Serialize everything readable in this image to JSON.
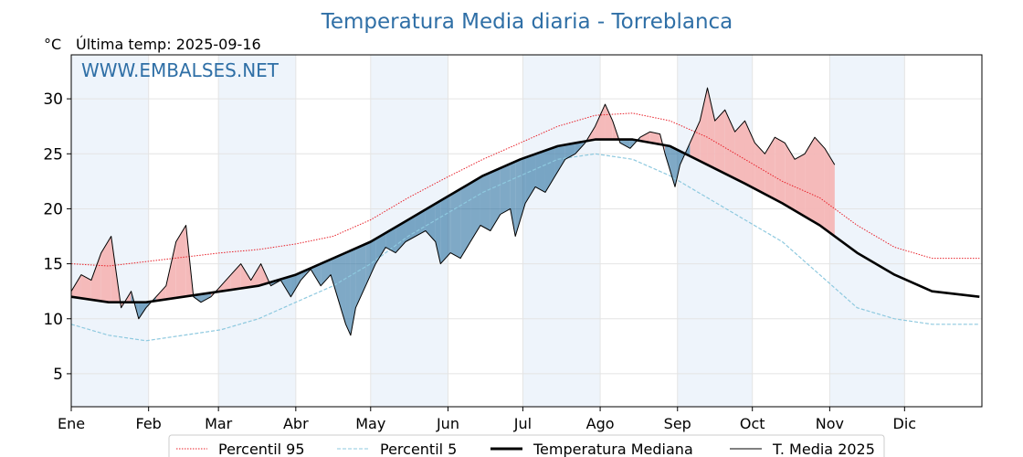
{
  "chart_data": {
    "type": "line",
    "title": "Temperatura Media diaria - Torreblanca",
    "unit_label": "°C",
    "subtitle": "Última temp: 2025-09-16",
    "watermark": "WWW.EMBALSES.NET",
    "months": [
      "Ene",
      "Feb",
      "Mar",
      "Abr",
      "May",
      "Jun",
      "Jul",
      "Ago",
      "Sep",
      "Oct",
      "Nov",
      "Dic"
    ],
    "yticks": [
      5,
      10,
      15,
      20,
      25,
      30
    ],
    "ylim": [
      2,
      34
    ],
    "grid": true,
    "legend_position": "bottom-center",
    "colors": {
      "p95": "#e8212a",
      "p5": "#8ec9df",
      "median": "#000000",
      "year": "#000000",
      "above": "#f4b6b6",
      "below": "#2a6fa0",
      "band": "#eef4fb",
      "title": "#2f6fa6"
    },
    "series": [
      {
        "name": "Percentil 95",
        "style": "dotted",
        "points": [
          [
            0,
            15
          ],
          [
            15,
            14.8
          ],
          [
            30,
            15.2
          ],
          [
            45,
            15.6
          ],
          [
            60,
            16
          ],
          [
            75,
            16.3
          ],
          [
            90,
            16.8
          ],
          [
            105,
            17.5
          ],
          [
            120,
            19
          ],
          [
            135,
            21
          ],
          [
            150,
            22.8
          ],
          [
            165,
            24.5
          ],
          [
            180,
            26
          ],
          [
            195,
            27.5
          ],
          [
            210,
            28.5
          ],
          [
            225,
            28.7
          ],
          [
            240,
            28
          ],
          [
            255,
            26.5
          ],
          [
            270,
            24.5
          ],
          [
            285,
            22.5
          ],
          [
            300,
            21
          ],
          [
            315,
            18.5
          ],
          [
            330,
            16.5
          ],
          [
            345,
            15.5
          ],
          [
            364,
            15.5
          ]
        ]
      },
      {
        "name": "Percentil 5",
        "style": "dashed",
        "points": [
          [
            0,
            9.5
          ],
          [
            15,
            8.5
          ],
          [
            30,
            8
          ],
          [
            45,
            8.5
          ],
          [
            60,
            9
          ],
          [
            75,
            10
          ],
          [
            90,
            11.5
          ],
          [
            105,
            13
          ],
          [
            120,
            15
          ],
          [
            135,
            17.5
          ],
          [
            150,
            19.5
          ],
          [
            165,
            21.5
          ],
          [
            180,
            23
          ],
          [
            195,
            24.5
          ],
          [
            210,
            25
          ],
          [
            225,
            24.5
          ],
          [
            240,
            23
          ],
          [
            255,
            21
          ],
          [
            270,
            19
          ],
          [
            285,
            17
          ],
          [
            300,
            14
          ],
          [
            315,
            11
          ],
          [
            330,
            10
          ],
          [
            345,
            9.5
          ],
          [
            364,
            9.5
          ]
        ]
      },
      {
        "name": "Temperatura Mediana",
        "style": "thick",
        "points": [
          [
            0,
            12
          ],
          [
            15,
            11.5
          ],
          [
            30,
            11.5
          ],
          [
            45,
            12
          ],
          [
            60,
            12.5
          ],
          [
            75,
            13
          ],
          [
            90,
            14
          ],
          [
            105,
            15.5
          ],
          [
            120,
            17
          ],
          [
            135,
            19
          ],
          [
            150,
            21
          ],
          [
            165,
            23
          ],
          [
            180,
            24.5
          ],
          [
            195,
            25.7
          ],
          [
            210,
            26.3
          ],
          [
            225,
            26.3
          ],
          [
            240,
            25.7
          ],
          [
            255,
            24
          ],
          [
            270,
            22.3
          ],
          [
            285,
            20.5
          ],
          [
            300,
            18.5
          ],
          [
            315,
            16
          ],
          [
            330,
            14
          ],
          [
            345,
            12.5
          ],
          [
            364,
            12
          ]
        ]
      },
      {
        "name": "T. Media 2025",
        "style": "thin",
        "points": [
          [
            0,
            12.5
          ],
          [
            4,
            14
          ],
          [
            8,
            13.5
          ],
          [
            12,
            16
          ],
          [
            16,
            17.5
          ],
          [
            20,
            11
          ],
          [
            24,
            12.5
          ],
          [
            27,
            10
          ],
          [
            30,
            11
          ],
          [
            34,
            12
          ],
          [
            38,
            13
          ],
          [
            42,
            17
          ],
          [
            46,
            18.5
          ],
          [
            49,
            12
          ],
          [
            52,
            11.5
          ],
          [
            56,
            12
          ],
          [
            60,
            13
          ],
          [
            64,
            14
          ],
          [
            68,
            15
          ],
          [
            72,
            13.5
          ],
          [
            76,
            15
          ],
          [
            80,
            13
          ],
          [
            84,
            13.5
          ],
          [
            88,
            12
          ],
          [
            92,
            13.5
          ],
          [
            96,
            14.5
          ],
          [
            100,
            13
          ],
          [
            104,
            14
          ],
          [
            108,
            11
          ],
          [
            110,
            9.5
          ],
          [
            112,
            8.5
          ],
          [
            114,
            11
          ],
          [
            118,
            13
          ],
          [
            122,
            15
          ],
          [
            126,
            16.5
          ],
          [
            130,
            16
          ],
          [
            134,
            17
          ],
          [
            138,
            17.5
          ],
          [
            142,
            18
          ],
          [
            146,
            17
          ],
          [
            148,
            15
          ],
          [
            152,
            16
          ],
          [
            156,
            15.5
          ],
          [
            160,
            17
          ],
          [
            164,
            18.5
          ],
          [
            168,
            18
          ],
          [
            172,
            19.5
          ],
          [
            176,
            20
          ],
          [
            178,
            17.5
          ],
          [
            182,
            20.5
          ],
          [
            186,
            22
          ],
          [
            190,
            21.5
          ],
          [
            194,
            23
          ],
          [
            198,
            24.5
          ],
          [
            202,
            25
          ],
          [
            206,
            26
          ],
          [
            210,
            27.5
          ],
          [
            214,
            29.5
          ],
          [
            217,
            28
          ],
          [
            220,
            26
          ],
          [
            224,
            25.5
          ],
          [
            228,
            26.5
          ],
          [
            232,
            27
          ],
          [
            236,
            26.8
          ],
          [
            238,
            25
          ],
          [
            240,
            23.5
          ],
          [
            242,
            22
          ],
          [
            244,
            24
          ],
          [
            248,
            26
          ],
          [
            252,
            28
          ],
          [
            255,
            31
          ],
          [
            258,
            28
          ],
          [
            262,
            29
          ],
          [
            266,
            27
          ],
          [
            270,
            28
          ],
          [
            274,
            26
          ],
          [
            278,
            25
          ],
          [
            282,
            26.5
          ],
          [
            286,
            26
          ],
          [
            290,
            24.5
          ],
          [
            294,
            25
          ],
          [
            298,
            26.5
          ],
          [
            302,
            25.5
          ],
          [
            306,
            24
          ]
        ]
      }
    ]
  },
  "legend": {
    "items": [
      {
        "label": "Percentil 95"
      },
      {
        "label": "Percentil 5"
      },
      {
        "label": "Temperatura Mediana"
      },
      {
        "label": "T. Media 2025"
      }
    ]
  }
}
